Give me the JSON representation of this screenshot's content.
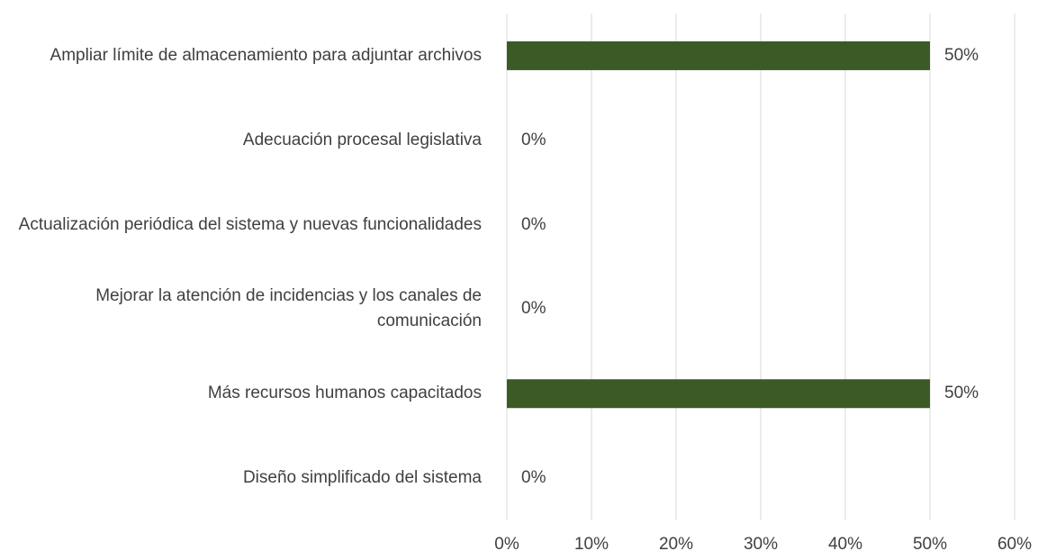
{
  "chart_data": {
    "type": "bar",
    "orientation": "horizontal",
    "categories": [
      "Ampliar límite de almacenamiento para adjuntar archivos",
      "Adecuación procesal legislativa",
      "Actualización periódica del sistema y nuevas funcionalidades",
      "Mejorar la atención de incidencias y los canales de comunicación",
      "Más recursos humanos capacitados",
      "Diseño simplificado del sistema"
    ],
    "values": [
      50,
      0,
      0,
      0,
      50,
      0
    ],
    "value_labels": [
      "50%",
      "0%",
      "0%",
      "0%",
      "50%",
      "0%"
    ],
    "color": "#3b5a26",
    "xlim": [
      0,
      60
    ],
    "xticks": [
      {
        "value": 0,
        "label": "0%"
      },
      {
        "value": 10,
        "label": "10%"
      },
      {
        "value": 20,
        "label": "20%"
      },
      {
        "value": 30,
        "label": "30%"
      },
      {
        "value": 40,
        "label": "40%"
      },
      {
        "value": 50,
        "label": "50%"
      },
      {
        "value": 60,
        "label": "60%"
      }
    ],
    "grid": true
  }
}
